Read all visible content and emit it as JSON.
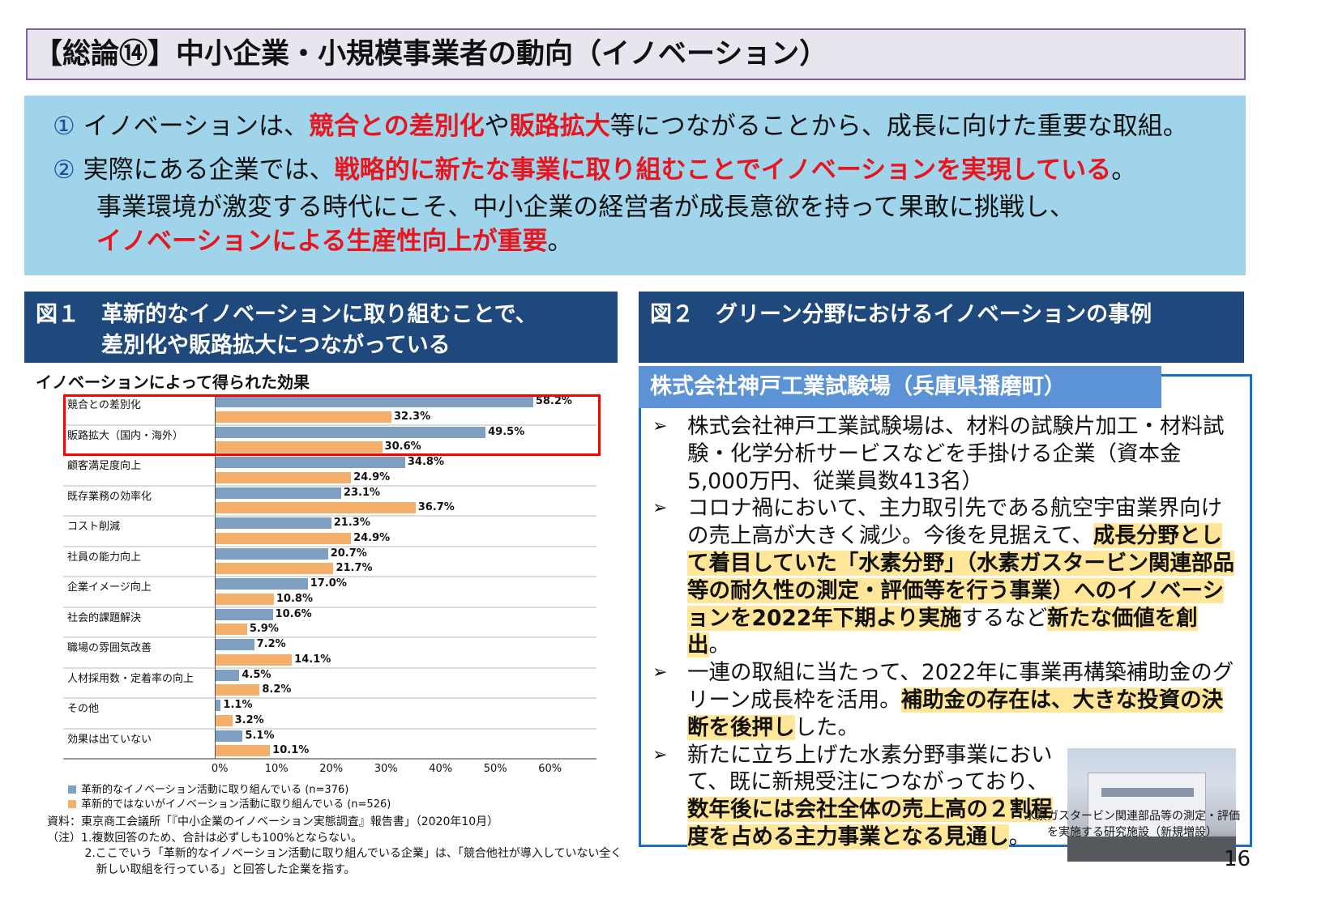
{
  "title": "【総論⑭】中小企業・小規模事業者の動向（イノベーション）",
  "summary": {
    "lines": [
      [
        {
          "t": "①",
          "c": "num"
        },
        {
          "t": " イノベーションは、"
        },
        {
          "t": "競合との差別化",
          "c": "red"
        },
        {
          "t": "や"
        },
        {
          "t": "販路拡大",
          "c": "red"
        },
        {
          "t": "等につながることから、成長に向けた重要な取組。"
        }
      ],
      [
        {
          "t": "②",
          "c": "num"
        },
        {
          "t": " 実際にある企業では、"
        },
        {
          "t": "戦略的に新たな事業に取り組むことでイノベーションを実現している",
          "c": "red"
        },
        {
          "t": "。"
        }
      ],
      [
        {
          "t": "事業環境が激変する時代にこそ、中小企業の経営者が成長意欲を持って果敢に挑戦し、"
        }
      ],
      [
        {
          "t": "イノベーションによる生産性向上が重要",
          "c": "red"
        },
        {
          "t": "。"
        }
      ]
    ]
  },
  "fig1": {
    "title_line1": "図１　革新的なイノベーションに取り組むことで、",
    "title_line2": "　　　差別化や販路拡大につながっている"
  },
  "fig2": {
    "title": "図２　グリーン分野におけるイノベーションの事例"
  },
  "chart_data": {
    "type": "bar",
    "orientation": "horizontal",
    "title": "イノベーションによって得られた効果",
    "categories": [
      "競合との差別化",
      "販路拡大（国内・海外）",
      "顧客満足度向上",
      "既存業務の効率化",
      "コスト削減",
      "社員の能力向上",
      "企業イメージ向上",
      "社会的課題解決",
      "職場の雰囲気改善",
      "人材採用数・定着率の向上",
      "その他",
      "効果は出ていない"
    ],
    "series": [
      {
        "name": "革新的なイノベーション活動に取り組んでいる (n=376)",
        "color": "#7f9fc2",
        "values": [
          58.2,
          49.5,
          34.8,
          23.1,
          21.3,
          20.7,
          17.0,
          10.6,
          7.2,
          4.5,
          1.1,
          5.1
        ]
      },
      {
        "name": "革新的ではないがイノベーション活動に取り組んでいる (n=526)",
        "color": "#f4b06b",
        "values": [
          32.3,
          30.6,
          24.9,
          36.7,
          24.9,
          21.7,
          10.8,
          5.9,
          14.1,
          8.2,
          3.2,
          10.1
        ]
      }
    ],
    "xticks": [
      "0%",
      "10%",
      "20%",
      "30%",
      "40%",
      "50%",
      "60%"
    ],
    "xlim": [
      0,
      60
    ],
    "value_suffix": "%",
    "legend": "bottom-left",
    "highlight_color": "#ff0000"
  },
  "notes": [
    "資料：東京商工会議所「『中小企業のイノベーション実態調査』報告書」（2020年10月）",
    "（注）1.複数回答のため、合計は必ずしも100%とならない。",
    "　　　 2.ここでいう「革新的なイノベーション活動に取り組んでいる企業」は、「競合他社が導入していない全く",
    "　　　　 新しい取組を行っている」と回答した企業を指す。"
  ],
  "case": {
    "company": "株式会社神戸工業試験場（兵庫県播磨町）",
    "bullet_icon": "arrow-right-icon",
    "bullets": [
      [
        {
          "t": "株式会社神戸工業試験場は、材料の試験片加工・材料試験・化学分析サービスなどを手掛ける企業（資本金5,000万円、従業員数413名）"
        }
      ],
      [
        {
          "t": "コロナ禍において、主力取引先である航空宇宙業界向けの売上高が大きく減少。今後を見据えて、"
        },
        {
          "t": "成長分野として着目していた「水素分野」（水素ガスタービン関連部品等の耐久性の測定・評価等を行う事業）へのイノベーションを2022年下期より実施",
          "c": "hl"
        },
        {
          "t": "するなど"
        },
        {
          "t": "新たな価値を創出",
          "c": "hl"
        },
        {
          "t": "。"
        }
      ],
      [
        {
          "t": "一連の取組に当たって、2022年に事業再構築補助金のグリーン成長枠を活用。"
        },
        {
          "t": "補助金の存在は、大きな投資の決断を後押し",
          "c": "hl"
        },
        {
          "t": "した。"
        }
      ],
      [
        {
          "t": "新たに立ち上げた水素分野事業において、既に新規受注につながっており、"
        },
        {
          "t": "数年後には会社全体の売上高の２割程度を占める主力事業となる見通し",
          "c": "hl"
        },
        {
          "t": "。"
        }
      ]
    ],
    "photo_caption": "水素ガスタービン関連部品等の測定・評価を実施する研究施設（新規増設）"
  },
  "page_number": "16"
}
